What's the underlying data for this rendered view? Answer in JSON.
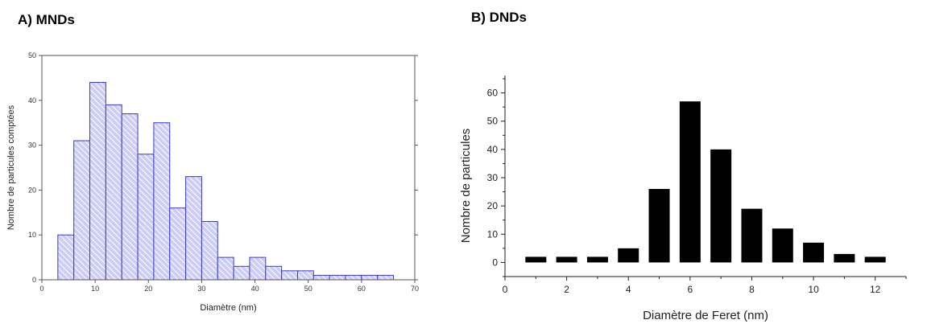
{
  "chart_data": [
    {
      "panel_label": "A) MNDs",
      "type": "bar",
      "x": [
        4.5,
        7.5,
        10.5,
        13.5,
        16.5,
        19.5,
        22.5,
        25.5,
        28.5,
        31.5,
        34.5,
        37.5,
        40.5,
        43.5,
        46.5,
        49.5,
        52.5,
        55.5,
        58.5,
        61.5,
        64.5
      ],
      "values": [
        10,
        31,
        44,
        39,
        37,
        28,
        35,
        16,
        23,
        13,
        5,
        3,
        5,
        3,
        2,
        2,
        1,
        1,
        1,
        1,
        1
      ],
      "bin_width": 3,
      "xlabel": "Diamètre (nm)",
      "ylabel": "Nombre de particules comptées",
      "xlim": [
        0,
        70
      ],
      "ylim": [
        0,
        50
      ],
      "xticks": [
        "0",
        "10",
        "20",
        "30",
        "40",
        "50",
        "60",
        "70"
      ],
      "yticks": [
        "0",
        "10",
        "20",
        "30",
        "40",
        "50"
      ],
      "bar_fill": "#ccccf5",
      "bar_stroke": "#3a3acc",
      "hatch_color": "#ffffff",
      "grid": false
    },
    {
      "panel_label": "B) DNDs",
      "type": "bar",
      "x": [
        1,
        2,
        3,
        4,
        5,
        6,
        7,
        8,
        9,
        10,
        11,
        12
      ],
      "values": [
        0,
        0,
        0,
        5,
        26,
        57,
        40,
        19,
        12,
        7,
        3,
        1
      ],
      "xlabel": "Diamètre de Feret (nm)",
      "ylabel": "Nombre de particules",
      "xlim": [
        0,
        13
      ],
      "ylim": [
        -5,
        65
      ],
      "xticks": [
        "0",
        "2",
        "4",
        "6",
        "8",
        "10",
        "12"
      ],
      "yticks": [
        "0",
        "10",
        "20",
        "30",
        "40",
        "50",
        "60"
      ],
      "bar_fill": "#000000",
      "grid": false
    }
  ]
}
